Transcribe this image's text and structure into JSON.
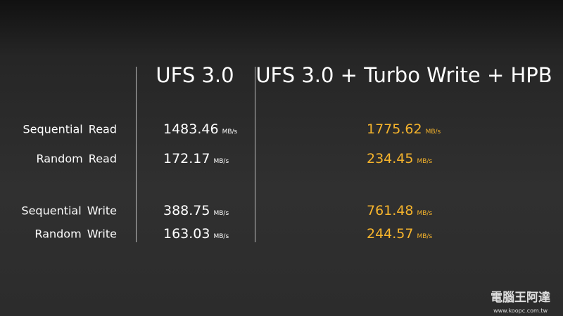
{
  "header": {
    "columns": [
      "UFS 3.0",
      "UFS 3.0 + Turbo Write + HPB"
    ]
  },
  "table": {
    "rows": [
      {
        "label": "Sequential Read",
        "cells": [
          {
            "value": 1483.46,
            "unit": "MB/s"
          },
          {
            "value": 1775.62,
            "unit": "MB/s"
          }
        ]
      },
      {
        "label": "Random Read",
        "cells": [
          {
            "value": 172.17,
            "unit": "MB/s"
          },
          {
            "value": 234.45,
            "unit": "MB/s"
          }
        ]
      },
      {
        "label": "Sequential Write",
        "cells": [
          {
            "value": 388.75,
            "unit": "MB/s"
          },
          {
            "value": 761.48,
            "unit": "MB/s"
          }
        ]
      },
      {
        "label": "Random Write",
        "cells": [
          {
            "value": 163.03,
            "unit": "MB/s"
          },
          {
            "value": 244.57,
            "unit": "MB/s"
          }
        ]
      }
    ]
  },
  "watermark": {
    "name": "電腦王阿達",
    "url": "www.koopc.com.tw"
  }
}
